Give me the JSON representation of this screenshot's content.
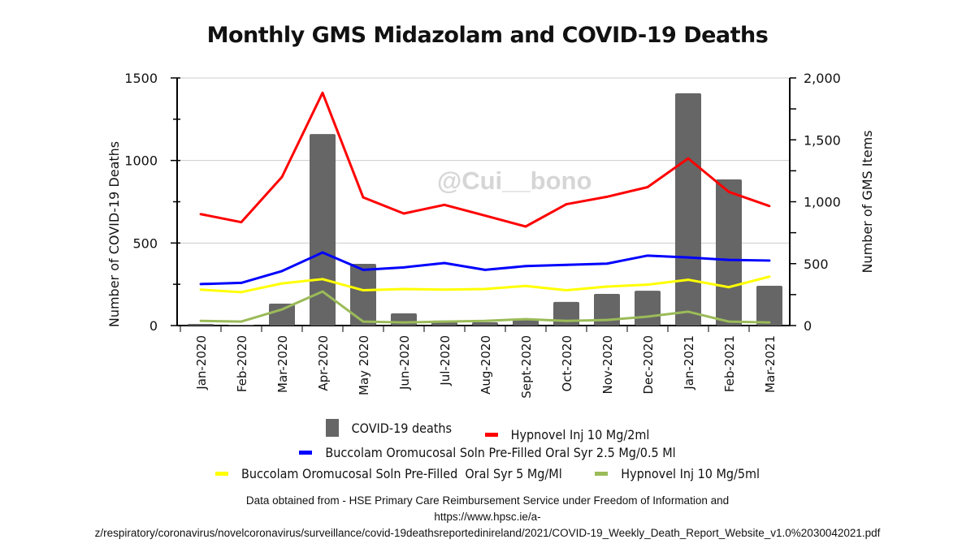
{
  "chart_data": {
    "type": "bar+line",
    "title": "Monthly GMS Midazolam and COVID-19 Deaths",
    "watermark": "@Cui__bono",
    "categories": [
      "Jan-2020",
      "Feb-2020",
      "Mar-2020",
      "Apr-2020",
      "May 2020",
      "Jun-2020",
      "Jul-2020",
      "Aug-2020",
      "Sept-2020",
      "Oct-2020",
      "Nov-2020",
      "Dec-2020",
      "Jan-2021",
      "Feb-2021",
      "Mar-2021"
    ],
    "y_left": {
      "label": "Number of COVID-19 Deaths",
      "range": [
        0,
        1500
      ],
      "ticks": [
        "0",
        "500",
        "1000",
        "1500"
      ],
      "tick_values": [
        0,
        500,
        1000,
        1500
      ]
    },
    "y_right": {
      "label": "Number of GMS Items",
      "range": [
        0,
        2000
      ],
      "ticks": [
        "0",
        "500",
        "1,000",
        "1,500",
        "2,000"
      ],
      "tick_values": [
        0,
        500,
        1000,
        1500,
        2000
      ]
    },
    "grid": true,
    "legend_placement": "bottom",
    "series": [
      {
        "name": "COVID-19 deaths",
        "kind": "bar",
        "axis": "left",
        "color": "#666666",
        "values": [
          10,
          5,
          133,
          1160,
          374,
          74,
          30,
          20,
          40,
          143,
          192,
          211,
          1407,
          885,
          241
        ]
      },
      {
        "name": "Hypnovel Inj 10 Mg/2ml",
        "kind": "line",
        "axis": "right",
        "color": "#ff0000",
        "values": [
          900,
          835,
          1200,
          1880,
          1035,
          905,
          975,
          888,
          800,
          980,
          1040,
          1118,
          1350,
          1080,
          965
        ]
      },
      {
        "name": "Buccolam Oromucosal Soln Pre-Filled Oral Syr 2.5 Mg/0.5 Ml",
        "kind": "line",
        "axis": "right",
        "color": "#0000ff",
        "values": [
          335,
          345,
          440,
          590,
          450,
          470,
          505,
          450,
          480,
          490,
          500,
          565,
          550,
          530,
          525
        ]
      },
      {
        "name": "Buccolam Oromucosal Soln Pre-Filled  Oral Syr 5 Mg/Ml",
        "kind": "line",
        "axis": "right",
        "color": "#ffff00",
        "values": [
          290,
          270,
          340,
          375,
          285,
          295,
          290,
          295,
          320,
          285,
          315,
          330,
          370,
          310,
          395
        ]
      },
      {
        "name": "Hypnovel Inj 10 Mg/5ml",
        "kind": "line",
        "axis": "right",
        "color": "#9bbb59",
        "values": [
          38,
          32,
          130,
          275,
          32,
          25,
          32,
          38,
          52,
          38,
          45,
          72,
          112,
          32,
          25
        ]
      }
    ]
  },
  "footer": {
    "line1": "Data obtained from -  HSE Primary Care Reimbursement Service under Freedom of Information and",
    "line2": "https://www.hpsc.ie/a-",
    "line3": "z/respiratory/coronavirus/novelcoronavirus/surveillance/covid-19deathsreportedinireland/2021/COVID-19_Weekly_Death_Report_Website_v1.0%2030042021.pdf"
  }
}
